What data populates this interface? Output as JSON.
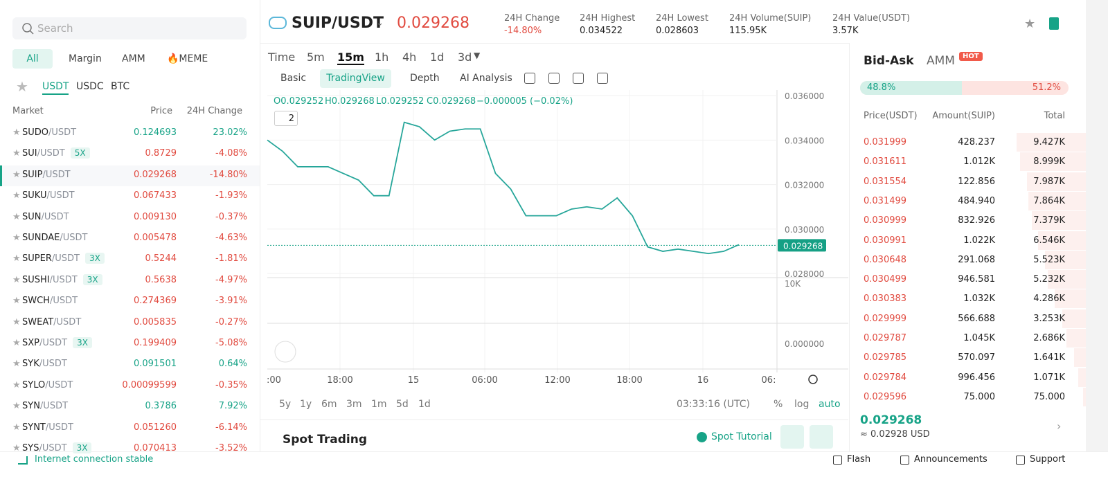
{
  "search": {
    "placeholder": "Search"
  },
  "market_tabs": [
    "All",
    "Margin",
    "AMM",
    "🔥MEME"
  ],
  "quote_tabs": [
    "USDT",
    "USDC",
    "BTC"
  ],
  "market_headers": [
    "Market",
    "Price",
    "24H Change"
  ],
  "markets": [
    {
      "base": "SUDO",
      "quote": "/USDT",
      "price": "0.124693",
      "change": "23.02%"
    },
    {
      "base": "SUI",
      "quote": "/USDT",
      "leverage": "5X",
      "price": "0.8729",
      "change": "-4.08%"
    },
    {
      "base": "SUIP",
      "quote": "/USDT",
      "price": "0.029268",
      "change": "-14.80%"
    },
    {
      "base": "SUKU",
      "quote": "/USDT",
      "price": "0.067433",
      "change": "-1.93%"
    },
    {
      "base": "SUN",
      "quote": "/USDT",
      "price": "0.009130",
      "change": "-0.37%"
    },
    {
      "base": "SUNDAE",
      "quote": "/USDT",
      "price": "0.005478",
      "change": "-4.63%"
    },
    {
      "base": "SUPER",
      "quote": "/USDT",
      "leverage": "3X",
      "price": "0.5244",
      "change": "-1.81%"
    },
    {
      "base": "SUSHI",
      "quote": "/USDT",
      "leverage": "3X",
      "price": "0.5638",
      "change": "-4.97%"
    },
    {
      "base": "SWCH",
      "quote": "/USDT",
      "price": "0.274369",
      "change": "-3.91%"
    },
    {
      "base": "SWEAT",
      "quote": "/USDT",
      "price": "0.005835",
      "change": "-0.27%"
    },
    {
      "base": "SXP",
      "quote": "/USDT",
      "leverage": "3X",
      "price": "0.199409",
      "change": "-5.08%"
    },
    {
      "base": "SYK",
      "quote": "/USDT",
      "price": "0.091501",
      "change": "0.64%"
    },
    {
      "base": "SYLO",
      "quote": "/USDT",
      "price": "0.00099599",
      "change": "-0.35%"
    },
    {
      "base": "SYN",
      "quote": "/USDT",
      "price": "0.3786",
      "change": "7.92%"
    },
    {
      "base": "SYNT",
      "quote": "/USDT",
      "price": "0.051260",
      "change": "-6.14%"
    },
    {
      "base": "SYS",
      "quote": "/USDT",
      "leverage": "3X",
      "price": "0.070413",
      "change": "-3.52%"
    }
  ],
  "pair": "SUIP/USDT",
  "last_price": "0.029268",
  "stats": [
    {
      "label": "24H Change",
      "value": "-14.80%"
    },
    {
      "label": "24H Highest",
      "value": "0.034522"
    },
    {
      "label": "24H Lowest",
      "value": "0.028603"
    },
    {
      "label": "24H Volume(SUIP)",
      "value": "115.95K"
    },
    {
      "label": "24H Value(USDT)",
      "value": "3.57K"
    }
  ],
  "timeframes": [
    "Time",
    "5m",
    "15m",
    "1h",
    "4h",
    "1d",
    "3d"
  ],
  "chart_tabs": [
    "Basic",
    "TradingView",
    "Depth",
    "AI Analysis"
  ],
  "ohlc": [
    "O0.029252",
    "H0.029268",
    "L0.029252",
    "C0.029268",
    "−0.000005 (−0.02%)"
  ],
  "indicator_count": "2",
  "chart_data": {
    "type": "line",
    "ylim": [
      0.02785,
      0.03625
    ],
    "yticks": [
      {
        "value": 0.036,
        "label": "0.036000"
      },
      {
        "value": 0.034,
        "label": "0.034000"
      },
      {
        "value": 0.032,
        "label": "0.032000"
      },
      {
        "value": 0.03,
        "label": "0.030000"
      },
      {
        "value": 0.028,
        "label": "0.028000"
      }
    ],
    "x_labels": [
      ":00",
      "18:00",
      "15",
      "06:00",
      "12:00",
      "18:00",
      "16",
      "06:"
    ],
    "series": [
      {
        "color": "#26a69a",
        "values": [
          0.034,
          0.0335,
          0.0328,
          0.0328,
          0.0328,
          0.0325,
          0.0322,
          0.0315,
          0.0315,
          0.0348,
          0.0346,
          0.034,
          0.0344,
          0.0345,
          0.0345,
          0.0325,
          0.0318,
          0.0306,
          0.0306,
          0.0306,
          0.0309,
          0.031,
          0.0309,
          0.0314,
          0.0306,
          0.0292,
          0.029,
          0.0291,
          0.029,
          0.0289,
          0.029,
          0.0293
        ]
      }
    ],
    "last_label": {
      "value": 0.029268,
      "label": "0.029268"
    },
    "volume_tick": "10K",
    "macd_tick": "0.000000"
  },
  "ranges": [
    "5y",
    "1y",
    "6m",
    "3m",
    "1m",
    "5d",
    "1d"
  ],
  "clock": "03:33:16 (UTC)",
  "scale_options": [
    "%",
    "log",
    "auto"
  ],
  "spot_title": "Spot Trading",
  "spot_tutorial": "Spot Tutorial",
  "orderbook": {
    "tabs": [
      "Bid-Ask",
      "AMM"
    ],
    "badge": "HOT",
    "buy_ratio": "48.8%",
    "sell_ratio": "51.2%",
    "headers": [
      "Price(USDT)",
      "Amount(SUIP)",
      "Total"
    ],
    "asks": [
      [
        "0.031999",
        "428.237",
        "9.427K"
      ],
      [
        "0.031611",
        "1.012K",
        "8.999K"
      ],
      [
        "0.031554",
        "122.856",
        "7.987K"
      ],
      [
        "0.031499",
        "484.940",
        "7.864K"
      ],
      [
        "0.030999",
        "832.926",
        "7.379K"
      ],
      [
        "0.030991",
        "1.022K",
        "6.546K"
      ],
      [
        "0.030648",
        "291.068",
        "5.523K"
      ],
      [
        "0.030499",
        "946.581",
        "5.232K"
      ],
      [
        "0.030383",
        "1.032K",
        "4.286K"
      ],
      [
        "0.029999",
        "566.688",
        "3.253K"
      ],
      [
        "0.029787",
        "1.045K",
        "2.686K"
      ],
      [
        "0.029785",
        "570.097",
        "1.641K"
      ],
      [
        "0.029784",
        "996.456",
        "1.071K"
      ],
      [
        "0.029596",
        "75.000",
        "75.000"
      ]
    ],
    "last": "0.029268",
    "last_usd": "≈ 0.02928 USD"
  },
  "footer": {
    "status": "Internet connection stable",
    "links": [
      "Flash",
      "Announcements",
      "Support"
    ]
  }
}
